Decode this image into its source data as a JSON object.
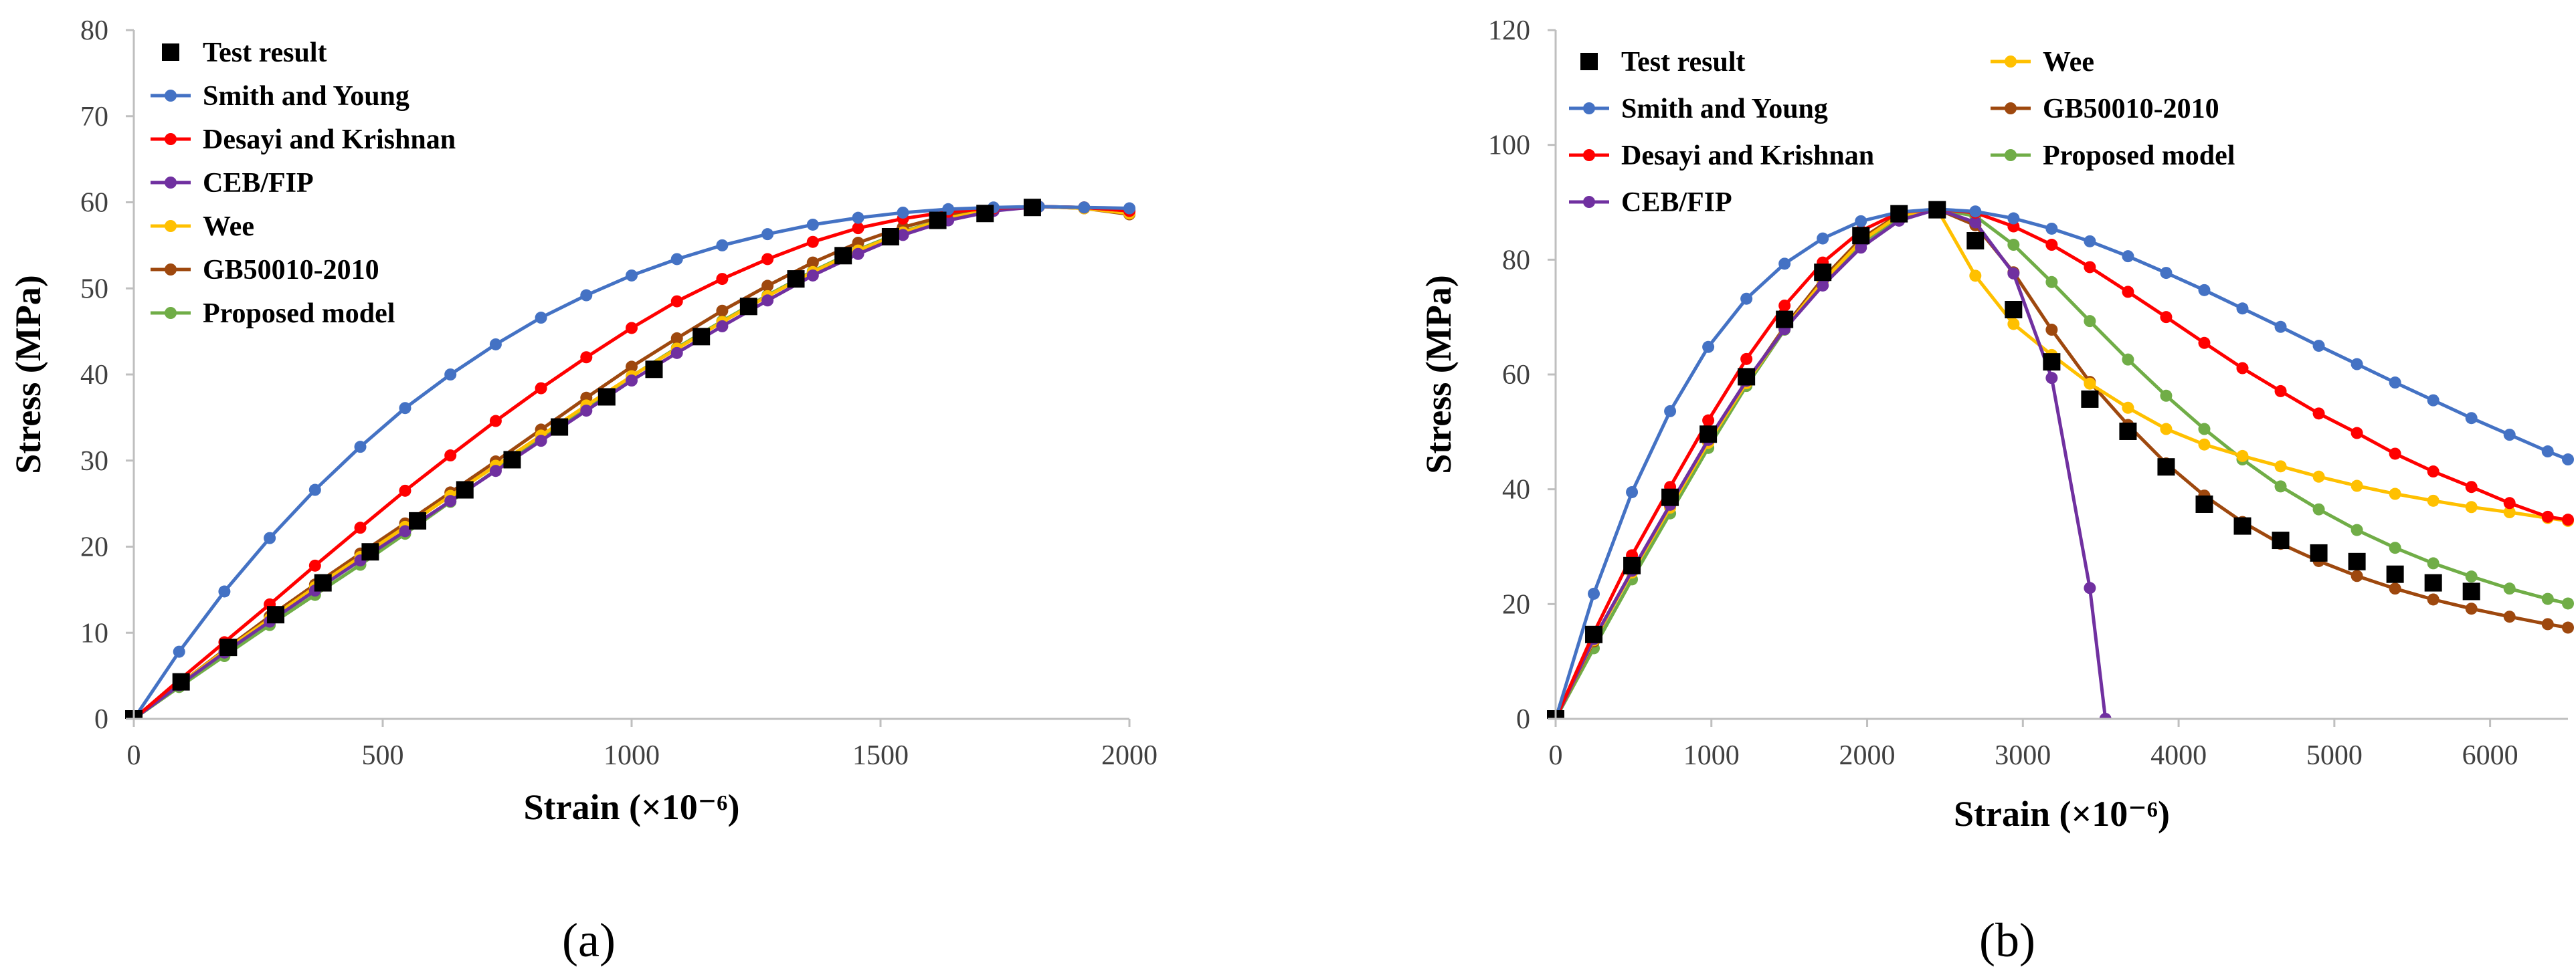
{
  "colors": {
    "test": "#000000",
    "smith": "#4472C4",
    "desayi": "#FF0000",
    "ceb": "#7030A0",
    "wee": "#FFC000",
    "gb": "#9E480E",
    "proposed": "#70AD47"
  },
  "chart_data": [
    {
      "type": "line",
      "panel_label": "(a)",
      "xlabel": "Strain (×10⁻⁶)",
      "ylabel": "Stress (MPa)",
      "xlim": [
        0,
        2000
      ],
      "ylim": [
        0,
        80
      ],
      "xticks": [
        0,
        500,
        1000,
        1500,
        2000
      ],
      "yticks": [
        0,
        10,
        20,
        30,
        40,
        50,
        60,
        70,
        80
      ],
      "legend_columns": 1,
      "series": [
        {
          "name": "Test result",
          "key": "test",
          "style": "marker-only",
          "x": [
            0,
            95,
            190,
            285,
            380,
            475,
            570,
            665,
            760,
            855,
            950,
            1045,
            1140,
            1235,
            1330,
            1425,
            1520,
            1615,
            1710,
            1805
          ],
          "y": [
            0,
            4.3,
            8.3,
            12.1,
            15.8,
            19.4,
            23.0,
            26.6,
            30.1,
            33.9,
            37.4,
            40.6,
            44.4,
            47.9,
            51.1,
            53.8,
            56.0,
            57.9,
            58.7,
            59.4
          ]
        },
        {
          "name": "Smith and Young",
          "key": "smith",
          "style": "line-marker",
          "x": [
            0,
            91,
            182,
            273,
            364,
            455,
            545,
            636,
            727,
            818,
            909,
            1000,
            1091,
            1182,
            1273,
            1364,
            1455,
            1545,
            1636,
            1727,
            1818,
            1909,
            2000
          ],
          "y": [
            0,
            7.8,
            14.8,
            21.0,
            26.6,
            31.6,
            36.1,
            40.0,
            43.5,
            46.6,
            49.2,
            51.5,
            53.4,
            55.0,
            56.3,
            57.4,
            58.2,
            58.8,
            59.2,
            59.4,
            59.5,
            59.4,
            59.3
          ]
        },
        {
          "name": "Desayi and Krishnan",
          "key": "desayi",
          "style": "line-marker",
          "x": [
            0,
            91,
            182,
            273,
            364,
            455,
            545,
            636,
            727,
            818,
            909,
            1000,
            1091,
            1182,
            1273,
            1364,
            1455,
            1545,
            1636,
            1727,
            1818,
            1909,
            2000
          ],
          "y": [
            0,
            4.5,
            8.9,
            13.3,
            17.8,
            22.2,
            26.5,
            30.6,
            34.6,
            38.4,
            42.0,
            45.4,
            48.5,
            51.1,
            53.4,
            55.4,
            57.0,
            58.1,
            58.9,
            59.3,
            59.5,
            59.4,
            59.0
          ]
        },
        {
          "name": "CEB/FIP",
          "key": "ceb",
          "style": "line-marker",
          "x": [
            0,
            91,
            182,
            273,
            364,
            455,
            545,
            636,
            727,
            818,
            909,
            1000,
            1091,
            1182,
            1273,
            1364,
            1455,
            1545,
            1636,
            1727,
            1818,
            1909,
            2000
          ],
          "y": [
            0,
            3.9,
            7.7,
            11.3,
            14.9,
            18.4,
            21.8,
            25.3,
            28.8,
            32.3,
            35.8,
            39.3,
            42.5,
            45.6,
            48.6,
            51.5,
            54.0,
            56.2,
            57.9,
            59.0,
            59.5,
            59.4,
            59.0
          ]
        },
        {
          "name": "Wee",
          "key": "wee",
          "style": "line-marker",
          "x": [
            0,
            91,
            182,
            273,
            364,
            455,
            545,
            636,
            727,
            818,
            909,
            1000,
            1091,
            1182,
            1273,
            1364,
            1455,
            1545,
            1636,
            1727,
            1818,
            1909,
            2000
          ],
          "y": [
            0,
            4.0,
            7.9,
            11.6,
            15.3,
            18.8,
            22.3,
            25.9,
            29.4,
            32.9,
            36.4,
            39.8,
            43.0,
            46.1,
            49.1,
            51.9,
            54.4,
            56.5,
            58.2,
            59.2,
            59.5,
            59.3,
            58.7
          ]
        },
        {
          "name": "GB50010-2010",
          "key": "gb",
          "style": "line-marker",
          "x": [
            0,
            91,
            182,
            273,
            364,
            455,
            545,
            636,
            727,
            818,
            909,
            1000,
            1091,
            1182,
            1273,
            1364,
            1455,
            1545,
            1636,
            1727,
            1818,
            1909,
            2000
          ],
          "y": [
            0,
            4.0,
            8.0,
            11.9,
            15.6,
            19.2,
            22.7,
            26.3,
            29.9,
            33.6,
            37.3,
            40.9,
            44.2,
            47.4,
            50.3,
            53.0,
            55.3,
            57.1,
            58.5,
            59.3,
            59.5,
            59.3,
            58.6
          ]
        },
        {
          "name": "Proposed model",
          "key": "proposed",
          "style": "line-marker",
          "x": [
            0,
            91,
            182,
            273,
            364,
            455,
            545,
            636,
            727,
            818,
            909,
            1000,
            1091,
            1182,
            1273,
            1364,
            1455,
            1545,
            1636,
            1727,
            1818,
            1909,
            2000
          ],
          "y": [
            0,
            3.7,
            7.3,
            10.9,
            14.4,
            17.9,
            21.5,
            25.2,
            28.9,
            32.6,
            36.2,
            39.8,
            43.1,
            46.2,
            49.2,
            52.0,
            54.5,
            56.6,
            58.2,
            59.2,
            59.5,
            59.4,
            59.1
          ]
        }
      ]
    },
    {
      "type": "line",
      "panel_label": "(b)",
      "xlabel": "Strain (×10⁻⁶)",
      "ylabel": "Stress (MPa)",
      "xlim": [
        0,
        6500
      ],
      "ylim": [
        0,
        120
      ],
      "xticks": [
        0,
        1000,
        2000,
        3000,
        4000,
        5000,
        6000
      ],
      "yticks": [
        0,
        20,
        40,
        60,
        80,
        100,
        120
      ],
      "legend_columns": 2,
      "series": [
        {
          "name": "Test result",
          "key": "test",
          "style": "marker-only",
          "x": [
            0,
            245,
            490,
            735,
            980,
            1225,
            1470,
            1715,
            1960,
            2205,
            2450,
            2695,
            2940,
            3185,
            3430,
            3675,
            3920,
            4165,
            4410,
            4655,
            4900,
            5145,
            5390,
            5635,
            5880
          ],
          "y": [
            0,
            14.7,
            26.7,
            38.6,
            49.6,
            59.6,
            69.6,
            77.8,
            84.2,
            88.0,
            88.7,
            83.3,
            71.3,
            62.2,
            55.7,
            50.1,
            43.9,
            37.4,
            33.6,
            31.1,
            28.9,
            27.4,
            25.2,
            23.7,
            22.2
          ]
        },
        {
          "name": "Smith and Young",
          "key": "smith",
          "style": "line-marker",
          "x": [
            0,
            245,
            490,
            735,
            980,
            1225,
            1470,
            1715,
            1960,
            2205,
            2450,
            2695,
            2940,
            3185,
            3430,
            3675,
            3920,
            4165,
            4410,
            4655,
            4900,
            5145,
            5390,
            5635,
            5880,
            6125,
            6370,
            6500
          ],
          "y": [
            0,
            21.8,
            39.5,
            53.6,
            64.8,
            73.2,
            79.3,
            83.7,
            86.7,
            88.3,
            88.8,
            88.4,
            87.2,
            85.4,
            83.2,
            80.6,
            77.7,
            74.7,
            71.5,
            68.3,
            65.0,
            61.8,
            58.6,
            55.5,
            52.4,
            49.5,
            46.6,
            45.2
          ]
        },
        {
          "name": "Desayi and Krishnan",
          "key": "desayi",
          "style": "line-marker",
          "x": [
            0,
            245,
            490,
            735,
            980,
            1225,
            1470,
            1715,
            1960,
            2205,
            2450,
            2695,
            2940,
            3185,
            3430,
            3675,
            3920,
            4165,
            4410,
            4655,
            4900,
            5145,
            5390,
            5635,
            5880,
            6125,
            6370,
            6500
          ],
          "y": [
            0,
            15.0,
            28.5,
            40.4,
            52.0,
            62.7,
            72.0,
            79.5,
            85.0,
            88.2,
            88.8,
            88.2,
            85.8,
            82.6,
            78.7,
            74.4,
            70.0,
            65.5,
            61.1,
            57.1,
            53.2,
            49.8,
            46.2,
            43.1,
            40.4,
            37.6,
            35.2,
            34.7
          ]
        },
        {
          "name": "CEB/FIP",
          "key": "ceb",
          "style": "line-marker",
          "x": [
            0,
            245,
            490,
            735,
            980,
            1225,
            1470,
            1715,
            1960,
            2205,
            2450,
            2695,
            2940,
            3185,
            3430,
            3530
          ],
          "y": [
            0,
            13.9,
            25.8,
            37.3,
            48.6,
            58.9,
            67.9,
            75.5,
            82.1,
            86.8,
            88.8,
            86.5,
            77.6,
            59.4,
            22.8,
            0
          ]
        },
        {
          "name": "Wee",
          "key": "wee",
          "style": "line-marker",
          "x": [
            0,
            245,
            490,
            735,
            980,
            1225,
            1470,
            1715,
            1960,
            2205,
            2450,
            2695,
            2940,
            3185,
            3430,
            3675,
            3920,
            4165,
            4410,
            4655,
            4900,
            5145,
            5390,
            5635,
            5880,
            6125,
            6370,
            6500
          ],
          "y": [
            0,
            13.7,
            25.5,
            36.8,
            48.1,
            58.5,
            68.0,
            76.2,
            83.2,
            87.7,
            88.8,
            77.2,
            68.8,
            63.4,
            58.4,
            54.2,
            50.5,
            47.8,
            45.8,
            44.0,
            42.2,
            40.6,
            39.2,
            38.0,
            36.9,
            36.0,
            35.0,
            34.5
          ]
        },
        {
          "name": "GB50010-2010",
          "key": "gb",
          "style": "line-marker",
          "x": [
            0,
            245,
            490,
            735,
            980,
            1225,
            1470,
            1715,
            1960,
            2205,
            2450,
            2695,
            2940,
            3185,
            3430,
            3675,
            3920,
            4165,
            4410,
            4655,
            4900,
            5145,
            5390,
            5635,
            5880,
            6125,
            6370,
            6500
          ],
          "y": [
            0,
            13.5,
            25.7,
            37.1,
            48.2,
            58.6,
            68.3,
            76.7,
            83.6,
            87.9,
            88.8,
            86.0,
            77.8,
            67.8,
            58.7,
            51.2,
            44.5,
            38.9,
            34.3,
            30.5,
            27.5,
            24.9,
            22.7,
            20.8,
            19.2,
            17.8,
            16.5,
            15.9
          ]
        },
        {
          "name": "Proposed model",
          "key": "proposed",
          "style": "line-marker",
          "x": [
            0,
            245,
            490,
            735,
            980,
            1225,
            1470,
            1715,
            1960,
            2205,
            2450,
            2695,
            2940,
            3185,
            3430,
            3675,
            3920,
            4165,
            4410,
            4655,
            4900,
            5145,
            5390,
            5635,
            5880,
            6125,
            6370,
            6500
          ],
          "y": [
            0,
            12.3,
            24.3,
            35.8,
            47.2,
            58.0,
            67.8,
            76.2,
            82.9,
            87.3,
            88.8,
            87.6,
            82.6,
            76.1,
            69.3,
            62.6,
            56.3,
            50.5,
            45.2,
            40.5,
            36.5,
            32.9,
            29.8,
            27.1,
            24.8,
            22.7,
            20.9,
            20.1
          ]
        }
      ]
    }
  ]
}
